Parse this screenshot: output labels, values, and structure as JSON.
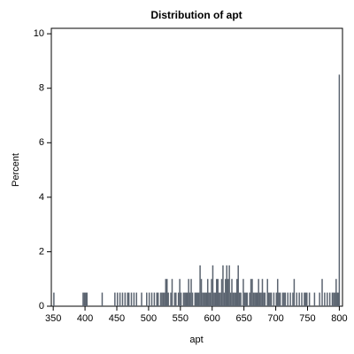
{
  "chart_data": {
    "type": "bar",
    "title": "Distribution of apt",
    "x_label": "apt",
    "y_label": "Percent",
    "color": "#5b6470",
    "x": [
      351,
      397,
      399,
      401,
      403,
      427,
      447,
      451,
      455,
      459,
      463,
      467,
      469,
      473,
      477,
      481,
      489,
      497,
      501,
      505,
      509,
      513,
      515,
      519,
      521,
      523,
      525,
      527,
      529,
      531,
      535,
      537,
      541,
      543,
      547,
      549,
      551,
      555,
      557,
      559,
      561,
      563,
      565,
      567,
      569,
      573,
      575,
      577,
      579,
      581,
      583,
      585,
      587,
      589,
      591,
      593,
      595,
      597,
      599,
      601,
      603,
      605,
      607,
      609,
      611,
      613,
      615,
      617,
      619,
      621,
      623,
      625,
      627,
      629,
      631,
      633,
      635,
      637,
      639,
      641,
      643,
      645,
      649,
      651,
      653,
      655,
      659,
      661,
      663,
      665,
      667,
      669,
      671,
      673,
      675,
      677,
      679,
      681,
      683,
      687,
      689,
      691,
      693,
      697,
      701,
      703,
      705,
      707,
      711,
      713,
      715,
      719,
      723,
      727,
      729,
      733,
      737,
      741,
      745,
      747,
      749,
      753,
      761,
      769,
      773,
      777,
      781,
      785,
      789,
      791,
      793,
      795,
      797,
      799,
      800
    ],
    "values": [
      0.5,
      0.5,
      0.5,
      0.5,
      0.5,
      0.5,
      0.5,
      0.5,
      0.5,
      0.5,
      0.5,
      0.5,
      0.5,
      0.5,
      0.5,
      0.5,
      0.5,
      0.5,
      0.5,
      0.5,
      0.5,
      0.5,
      0.5,
      0.5,
      0.5,
      0.5,
      0.5,
      1,
      1,
      0.5,
      0.5,
      1,
      0.5,
      0.5,
      0.5,
      1,
      0.5,
      0.5,
      0.5,
      0.5,
      0.5,
      1,
      0.5,
      1,
      0.5,
      0.5,
      0.5,
      0.5,
      0.5,
      1.5,
      1,
      0.5,
      0.5,
      0.5,
      0.5,
      1,
      0.5,
      0.5,
      1,
      1.5,
      0.5,
      0.5,
      1,
      1,
      0.5,
      0.5,
      1,
      1.5,
      0.5,
      1,
      1.5,
      1,
      1.5,
      0.5,
      1,
      0.5,
      0.5,
      0.5,
      1,
      1.5,
      0.5,
      0.5,
      1,
      0.5,
      0.5,
      0.5,
      0.5,
      1,
      1,
      0.5,
      0.5,
      0.5,
      0.5,
      1,
      0.5,
      0.5,
      1,
      0.5,
      0.5,
      1,
      0.5,
      0.5,
      0.5,
      0.5,
      0.5,
      1,
      0.5,
      0.5,
      0.5,
      0.5,
      0.5,
      0.5,
      0.5,
      0.5,
      1,
      0.5,
      0.5,
      0.5,
      0.5,
      0.5,
      0.5,
      0.5,
      0.5,
      0.5,
      1,
      0.5,
      0.5,
      0.5,
      0.5,
      0.5,
      0.5,
      1,
      0.5,
      0.5,
      8.5
    ],
    "xlim": [
      347,
      805
    ],
    "xticks": [
      350,
      400,
      450,
      500,
      550,
      600,
      650,
      700,
      750,
      800
    ],
    "ylim": [
      0,
      10.2
    ],
    "yticks": [
      0,
      2,
      4,
      6,
      8,
      10
    ]
  }
}
